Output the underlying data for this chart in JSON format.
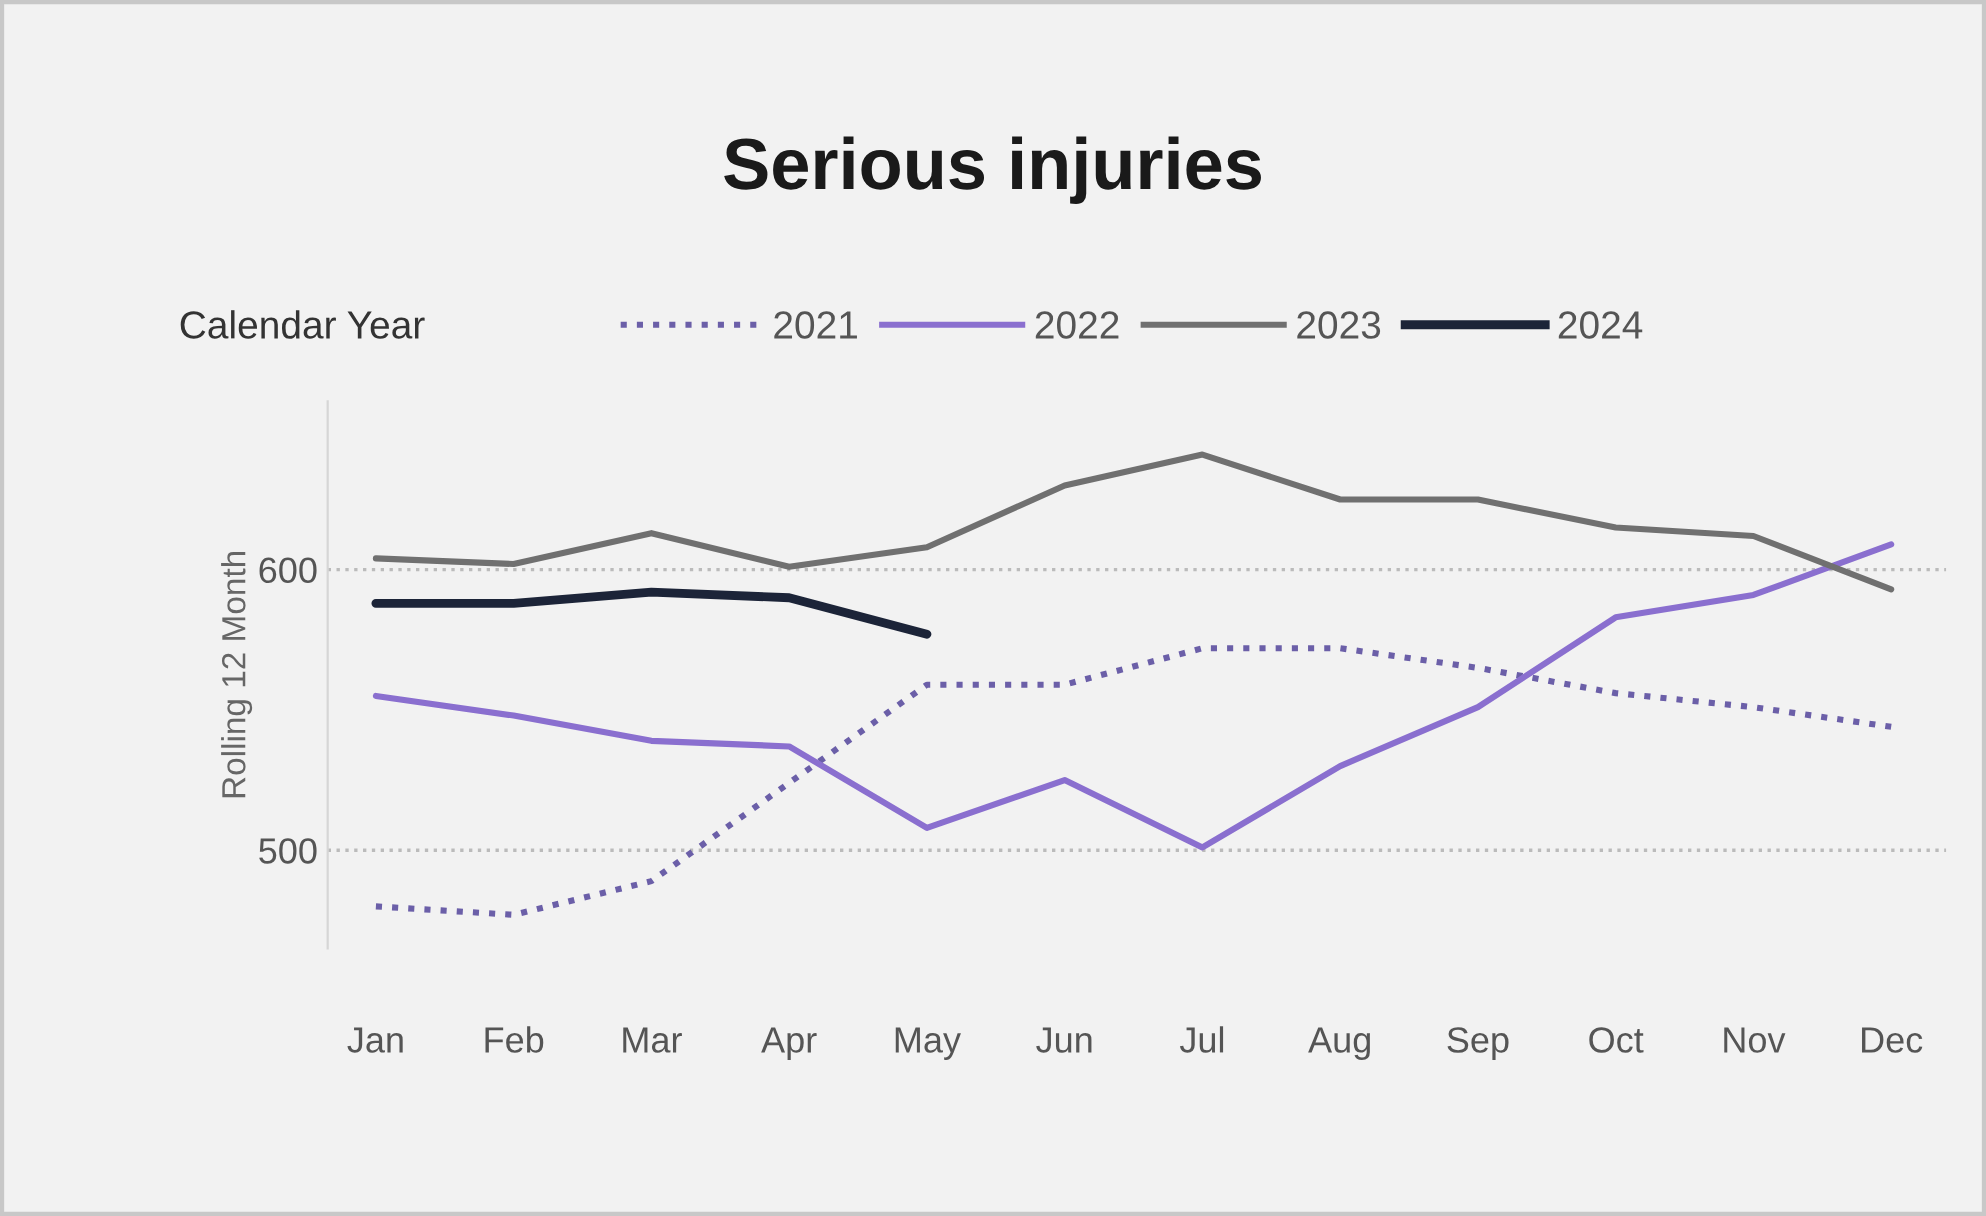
{
  "chart_data": {
    "type": "line",
    "title": "Serious injuries",
    "ylabel": "Rolling 12 Month",
    "legend_title": "Calendar Year",
    "categories": [
      "Jan",
      "Feb",
      "Mar",
      "Apr",
      "May",
      "Jun",
      "Jul",
      "Aug",
      "Sep",
      "Oct",
      "Nov",
      "Dec"
    ],
    "series": [
      {
        "name": "2021",
        "color": "#6b5fa8",
        "line_style": "dotted",
        "values": [
          480,
          477,
          489,
          524,
          559,
          559,
          572,
          572,
          565,
          556,
          551,
          544
        ]
      },
      {
        "name": "2022",
        "color": "#8a6fcf",
        "line_style": "solid",
        "values": [
          555,
          548,
          539,
          537,
          508,
          525,
          501,
          530,
          551,
          583,
          591,
          609
        ]
      },
      {
        "name": "2023",
        "color": "#707070",
        "line_style": "solid",
        "values": [
          604,
          602,
          613,
          601,
          608,
          630,
          641,
          625,
          625,
          615,
          612,
          593
        ]
      },
      {
        "name": "2024",
        "color": "#1c2438",
        "line_style": "solid",
        "values": [
          588,
          588,
          592,
          590,
          577,
          null,
          null,
          null,
          null,
          null,
          null,
          null
        ]
      }
    ],
    "ylim": [
      465,
      660
    ],
    "yticks": [
      500,
      600
    ],
    "grid": "y",
    "legend": "top",
    "marker": "none"
  }
}
